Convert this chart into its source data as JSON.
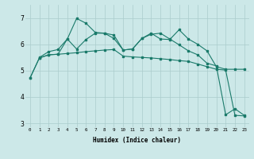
{
  "xlabel": "Humidex (Indice chaleur)",
  "bg_color": "#cce8e8",
  "line_color": "#1a7a6a",
  "grid_color": "#aacccc",
  "xlim": [
    -0.5,
    23.5
  ],
  "ylim": [
    2.85,
    7.5
  ],
  "yticks": [
    3,
    4,
    5,
    6,
    7
  ],
  "xticks": [
    0,
    1,
    2,
    3,
    4,
    5,
    6,
    7,
    8,
    9,
    10,
    11,
    12,
    13,
    14,
    15,
    16,
    17,
    18,
    19,
    20,
    21,
    22,
    23
  ],
  "line1_x": [
    0,
    1,
    2,
    3,
    4,
    5,
    6,
    7,
    8,
    9,
    10,
    11,
    12,
    13,
    14,
    15,
    16,
    17,
    18,
    19,
    20,
    21,
    22,
    23
  ],
  "line1_y": [
    4.72,
    5.48,
    5.6,
    5.62,
    6.2,
    6.98,
    6.8,
    6.45,
    6.42,
    6.35,
    5.78,
    5.82,
    6.22,
    6.42,
    6.2,
    6.18,
    6.55,
    6.2,
    6.0,
    5.75,
    5.15,
    5.05,
    5.05,
    5.05
  ],
  "line2_x": [
    0,
    1,
    2,
    3,
    4,
    5,
    6,
    7,
    8,
    9,
    10,
    11,
    12,
    13,
    14,
    15,
    16,
    17,
    18,
    19,
    20,
    21,
    22,
    23
  ],
  "line2_y": [
    4.72,
    5.48,
    5.6,
    5.62,
    5.65,
    5.68,
    5.72,
    5.75,
    5.78,
    5.8,
    5.55,
    5.52,
    5.5,
    5.48,
    5.45,
    5.42,
    5.38,
    5.35,
    5.25,
    5.15,
    5.05,
    5.02,
    3.3,
    3.28
  ],
  "line3_x": [
    1,
    2,
    3,
    4,
    5,
    6,
    7,
    8,
    9,
    10,
    11,
    12,
    13,
    14,
    15,
    16,
    17,
    18,
    19,
    20,
    21,
    22,
    23
  ],
  "line3_y": [
    5.5,
    5.72,
    5.8,
    6.2,
    5.82,
    6.18,
    6.42,
    6.42,
    6.22,
    5.78,
    5.82,
    6.22,
    6.38,
    6.42,
    6.2,
    5.98,
    5.75,
    5.6,
    5.28,
    5.18,
    3.32,
    3.55,
    3.3
  ]
}
